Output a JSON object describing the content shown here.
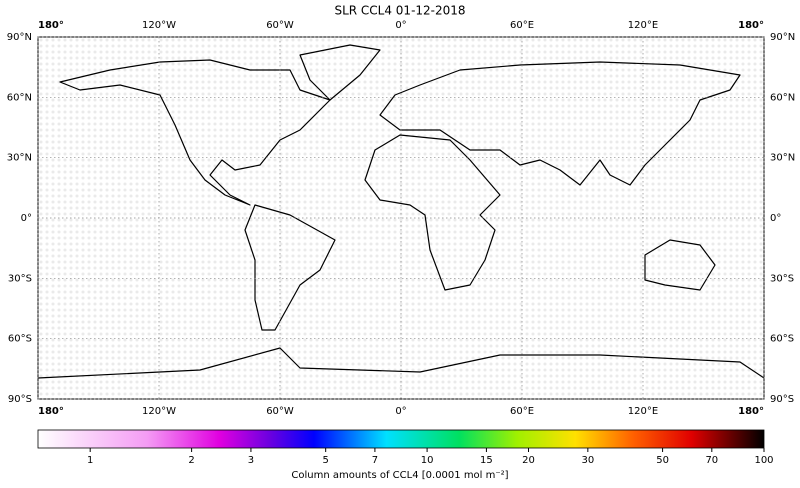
{
  "title": "SLR CCL4 01-12-2018",
  "map": {
    "xlim": [
      -180,
      180
    ],
    "ylim": [
      -90,
      90
    ],
    "lon_ticks": [
      {
        "value": -180,
        "label": "180°"
      },
      {
        "value": -120,
        "label": "120°W"
      },
      {
        "value": -60,
        "label": "60°W"
      },
      {
        "value": 0,
        "label": "0°"
      },
      {
        "value": 60,
        "label": "60°E"
      },
      {
        "value": 120,
        "label": "120°E"
      },
      {
        "value": 180,
        "label": "180°"
      }
    ],
    "lat_ticks": [
      {
        "value": 90,
        "label": "90°N"
      },
      {
        "value": 60,
        "label": "60°N"
      },
      {
        "value": 30,
        "label": "30°N"
      },
      {
        "value": 0,
        "label": "0°"
      },
      {
        "value": -30,
        "label": "30°S"
      },
      {
        "value": -60,
        "label": "60°S"
      },
      {
        "value": -90,
        "label": "90°S"
      }
    ],
    "grid": true
  },
  "colorbar": {
    "scale": "log",
    "lim": [
      0.7,
      100
    ],
    "ticks": [
      1,
      2,
      3,
      5,
      7,
      10,
      15,
      20,
      30,
      50,
      70,
      100
    ],
    "label": "Column amounts of CCL4 [0.0001 mol m⁻²]"
  }
}
